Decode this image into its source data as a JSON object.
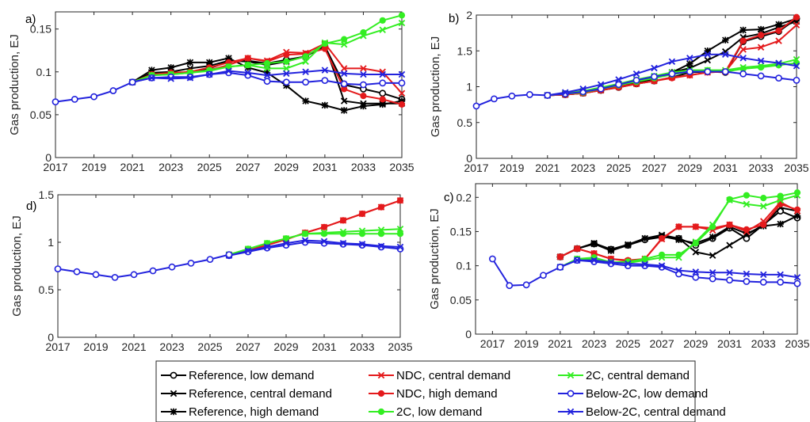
{
  "colors": {
    "reference": "#000000",
    "ndc": "#e41a1c",
    "two_c": "#33ee22",
    "below_2c": "#2222dd"
  },
  "legend": [
    {
      "label": "Reference, low demand",
      "scenario": "reference",
      "marker": "circle-open"
    },
    {
      "label": "Reference, central demand",
      "scenario": "reference",
      "marker": "x"
    },
    {
      "label": "Reference, high demand",
      "scenario": "reference",
      "marker": "star"
    },
    {
      "label": "NDC, central demand",
      "scenario": "ndc",
      "marker": "x"
    },
    {
      "label": "NDC, high demand",
      "scenario": "ndc",
      "marker": "circle-filled"
    },
    {
      "label": "2C, low demand",
      "scenario": "two_c",
      "marker": "circle-filled"
    },
    {
      "label": "2C, central demand",
      "scenario": "two_c",
      "marker": "x"
    },
    {
      "label": "Below-2C, low demand",
      "scenario": "below_2c",
      "marker": "circle-open"
    },
    {
      "label": "Below-2C, central demand",
      "scenario": "below_2c",
      "marker": "x"
    }
  ],
  "chart_data": [
    {
      "panel": "a)",
      "type": "line",
      "ylabel": "Gas production, EJ",
      "xlim": [
        2017,
        2035
      ],
      "ylim": [
        0,
        0.17
      ],
      "xticks": [
        "2017",
        "2019",
        "2021",
        "2023",
        "2025",
        "2027",
        "2029",
        "2031",
        "2033",
        "2035"
      ],
      "yticks": [
        "0",
        "0.05",
        "0.1",
        "0.15"
      ],
      "base_x": [
        2017,
        2018,
        2019,
        2020,
        2021
      ],
      "base_y": [
        0.065,
        0.068,
        0.071,
        0.078,
        0.088
      ],
      "series_x": [
        2021,
        2022,
        2023,
        2024,
        2025,
        2026,
        2027,
        2028,
        2029,
        2030,
        2031,
        2032,
        2033,
        2034,
        2035
      ],
      "series": [
        {
          "legend": 0,
          "values": [
            0.088,
            0.097,
            0.098,
            0.1,
            0.104,
            0.112,
            0.113,
            0.11,
            0.114,
            0.118,
            0.13,
            0.085,
            0.08,
            0.075,
            0.068
          ]
        },
        {
          "legend": 1,
          "values": [
            0.088,
            0.099,
            0.1,
            0.104,
            0.107,
            0.113,
            0.112,
            0.108,
            0.112,
            0.118,
            0.132,
            0.066,
            0.063,
            0.063,
            0.063
          ]
        },
        {
          "legend": 2,
          "values": [
            0.088,
            0.102,
            0.105,
            0.111,
            0.111,
            0.116,
            0.105,
            0.099,
            0.084,
            0.066,
            0.061,
            0.055,
            0.06,
            0.062,
            0.066
          ]
        },
        {
          "legend": 3,
          "values": [
            0.088,
            0.097,
            0.098,
            0.099,
            0.102,
            0.108,
            0.116,
            0.113,
            0.123,
            0.122,
            0.133,
            0.104,
            0.104,
            0.1,
            0.075
          ]
        },
        {
          "legend": 4,
          "values": [
            0.088,
            0.097,
            0.099,
            0.1,
            0.105,
            0.111,
            0.116,
            0.112,
            0.12,
            0.121,
            0.127,
            0.08,
            0.072,
            0.068,
            0.062
          ]
        },
        {
          "legend": 5,
          "values": [
            0.088,
            0.096,
            0.097,
            0.099,
            0.102,
            0.106,
            0.108,
            0.11,
            0.112,
            0.118,
            0.133,
            0.138,
            0.146,
            0.16,
            0.166
          ]
        },
        {
          "legend": 6,
          "values": [
            0.088,
            0.096,
            0.097,
            0.099,
            0.101,
            0.106,
            0.108,
            0.104,
            0.104,
            0.112,
            0.134,
            0.132,
            0.142,
            0.149,
            0.157
          ]
        },
        {
          "legend": 7,
          "values": [
            0.088,
            0.093,
            0.094,
            0.094,
            0.097,
            0.099,
            0.096,
            0.089,
            0.088,
            0.088,
            0.09,
            0.086,
            0.085,
            0.087,
            0.087
          ]
        },
        {
          "legend": 8,
          "values": [
            0.088,
            0.093,
            0.092,
            0.093,
            0.097,
            0.101,
            0.099,
            0.096,
            0.098,
            0.1,
            0.102,
            0.098,
            0.097,
            0.097,
            0.097
          ]
        }
      ]
    },
    {
      "panel": "b)",
      "type": "line",
      "ylabel": "Gas production, EJ",
      "xlim": [
        2017,
        2035
      ],
      "ylim": [
        0,
        2
      ],
      "xticks": [
        "2017",
        "2019",
        "2021",
        "2023",
        "2025",
        "2027",
        "2029",
        "2031",
        "2033",
        "2035"
      ],
      "yticks": [
        "0",
        "0.5",
        "1",
        "1.5",
        "2"
      ],
      "base_x": [
        2017,
        2018,
        2019,
        2020,
        2021
      ],
      "base_y": [
        0.73,
        0.83,
        0.87,
        0.89,
        0.88
      ],
      "series_x": [
        2021,
        2022,
        2023,
        2024,
        2025,
        2026,
        2027,
        2028,
        2029,
        2030,
        2031,
        2032,
        2033,
        2034,
        2035
      ],
      "series": [
        {
          "legend": 0,
          "values": [
            0.88,
            0.89,
            0.91,
            0.95,
            0.99,
            1.04,
            1.08,
            1.13,
            1.2,
            1.21,
            1.2,
            1.63,
            1.7,
            1.77,
            1.95
          ]
        },
        {
          "legend": 1,
          "values": [
            0.88,
            0.89,
            0.91,
            0.96,
            1.02,
            1.07,
            1.13,
            1.2,
            1.26,
            1.37,
            1.49,
            1.69,
            1.74,
            1.83,
            1.91
          ]
        },
        {
          "legend": 2,
          "values": [
            0.88,
            0.9,
            0.92,
            0.95,
            1.0,
            1.05,
            1.11,
            1.2,
            1.32,
            1.5,
            1.65,
            1.79,
            1.8,
            1.87,
            1.95
          ]
        },
        {
          "legend": 3,
          "values": [
            0.88,
            0.89,
            0.91,
            0.95,
            1.0,
            1.04,
            1.08,
            1.13,
            1.16,
            1.2,
            1.21,
            1.52,
            1.55,
            1.64,
            1.86
          ]
        },
        {
          "legend": 4,
          "values": [
            0.88,
            0.89,
            0.91,
            0.95,
            0.99,
            1.04,
            1.08,
            1.12,
            1.16,
            1.2,
            1.21,
            1.64,
            1.72,
            1.78,
            1.97
          ]
        },
        {
          "legend": 5,
          "values": [
            0.88,
            0.9,
            0.92,
            0.97,
            1.02,
            1.07,
            1.12,
            1.17,
            1.21,
            1.23,
            1.21,
            1.25,
            1.27,
            1.3,
            1.33
          ]
        },
        {
          "legend": 6,
          "values": [
            0.88,
            0.91,
            0.94,
            0.99,
            1.04,
            1.1,
            1.15,
            1.2,
            1.23,
            1.23,
            1.23,
            1.27,
            1.29,
            1.32,
            1.38
          ]
        },
        {
          "legend": 7,
          "values": [
            0.88,
            0.9,
            0.93,
            0.97,
            1.03,
            1.09,
            1.14,
            1.18,
            1.21,
            1.21,
            1.21,
            1.18,
            1.15,
            1.12,
            1.09
          ]
        },
        {
          "legend": 8,
          "values": [
            0.88,
            0.92,
            0.97,
            1.03,
            1.1,
            1.18,
            1.26,
            1.35,
            1.4,
            1.45,
            1.45,
            1.4,
            1.36,
            1.33,
            1.29
          ]
        }
      ]
    },
    {
      "panel": "d)",
      "type": "line",
      "ylabel": "Gas production, EJ",
      "xlim": [
        2017,
        2035
      ],
      "ylim": [
        0,
        1.5
      ],
      "xticks": [
        "2017",
        "2019",
        "2021",
        "2023",
        "2025",
        "2027",
        "2029",
        "2031",
        "2033",
        "2035"
      ],
      "yticks": [
        "0",
        "0.5",
        "1",
        "1.5"
      ],
      "base_x": [
        2017,
        2018,
        2019,
        2020,
        2021,
        2022,
        2023,
        2024,
        2025,
        2026
      ],
      "base_y": [
        0.72,
        0.69,
        0.66,
        0.63,
        0.66,
        0.7,
        0.74,
        0.78,
        0.82,
        0.87
      ],
      "series_x": [
        2026,
        2027,
        2028,
        2029,
        2030,
        2031,
        2032,
        2033,
        2034,
        2035
      ],
      "series": [
        {
          "legend": 3,
          "values": [
            0.87,
            0.92,
            0.97,
            1.03,
            1.1,
            1.16,
            1.23,
            1.3,
            1.37,
            1.44
          ]
        },
        {
          "legend": 4,
          "values": [
            0.87,
            0.92,
            0.97,
            1.03,
            1.1,
            1.16,
            1.23,
            1.3,
            1.37,
            1.44
          ]
        },
        {
          "legend": 5,
          "values": [
            0.87,
            0.93,
            0.99,
            1.04,
            1.09,
            1.09,
            1.09,
            1.09,
            1.09,
            1.09
          ]
        },
        {
          "legend": 6,
          "values": [
            0.87,
            0.93,
            0.99,
            1.04,
            1.09,
            1.1,
            1.11,
            1.12,
            1.13,
            1.14
          ]
        },
        {
          "legend": 7,
          "values": [
            0.86,
            0.9,
            0.94,
            0.97,
            1.0,
            0.99,
            0.98,
            0.97,
            0.95,
            0.93
          ]
        },
        {
          "legend": 8,
          "values": [
            0.86,
            0.91,
            0.95,
            0.99,
            1.02,
            1.01,
            0.99,
            0.98,
            0.96,
            0.95
          ]
        }
      ]
    },
    {
      "panel": "c)",
      "type": "line",
      "ylabel": "Gas production, EJ",
      "xlim": [
        2016,
        2035
      ],
      "ylim": [
        0,
        0.22
      ],
      "xticks": [
        "2017",
        "2019",
        "2021",
        "2023",
        "2025",
        "2027",
        "2029",
        "2031",
        "2033",
        "2035"
      ],
      "yticks": [
        "0",
        "0.05",
        "0.1",
        "0.15",
        "0.2"
      ],
      "base_x": [
        2017,
        2018,
        2019,
        2020,
        2021
      ],
      "base_y": [
        0.11,
        0.071,
        0.072,
        0.086,
        0.098
      ],
      "series_x": [
        2021,
        2022,
        2023,
        2024,
        2025,
        2026,
        2027,
        2028,
        2029,
        2030,
        2031,
        2032,
        2033,
        2034,
        2035
      ],
      "series": [
        {
          "legend": 0,
          "values": [
            0.113,
            0.125,
            0.132,
            0.124,
            0.13,
            0.138,
            0.142,
            0.14,
            0.13,
            0.14,
            0.155,
            0.14,
            0.16,
            0.18,
            0.17
          ]
        },
        {
          "legend": 1,
          "values": [
            0.113,
            0.125,
            0.133,
            0.124,
            0.131,
            0.14,
            0.145,
            0.14,
            0.12,
            0.115,
            0.13,
            0.145,
            0.16,
            0.185,
            0.18
          ]
        },
        {
          "legend": 2,
          "values": [
            0.113,
            0.125,
            0.132,
            0.122,
            0.13,
            0.14,
            0.143,
            0.138,
            0.133,
            0.142,
            0.157,
            0.147,
            0.158,
            0.161,
            0.173
          ]
        },
        {
          "legend": 3,
          "values": [
            0.113,
            0.125,
            0.118,
            0.11,
            0.107,
            0.11,
            0.139,
            0.157,
            0.157,
            0.152,
            0.16,
            0.15,
            0.165,
            0.193,
            0.18
          ]
        },
        {
          "legend": 4,
          "values": [
            0.113,
            0.125,
            0.118,
            0.11,
            0.108,
            0.11,
            0.14,
            0.157,
            0.157,
            0.155,
            0.16,
            0.153,
            0.16,
            0.19,
            0.182
          ]
        },
        {
          "legend": 5,
          "values": [
            0.098,
            0.11,
            0.112,
            0.105,
            0.106,
            0.11,
            0.116,
            0.116,
            0.133,
            0.157,
            0.197,
            0.203,
            0.199,
            0.202,
            0.207
          ]
        },
        {
          "legend": 6,
          "values": [
            0.098,
            0.11,
            0.11,
            0.105,
            0.104,
            0.108,
            0.112,
            0.112,
            0.135,
            0.16,
            0.196,
            0.19,
            0.187,
            0.196,
            0.203
          ]
        },
        {
          "legend": 7,
          "values": [
            0.098,
            0.108,
            0.106,
            0.103,
            0.1,
            0.1,
            0.098,
            0.088,
            0.083,
            0.081,
            0.079,
            0.077,
            0.076,
            0.076,
            0.074
          ]
        },
        {
          "legend": 8,
          "values": [
            0.098,
            0.108,
            0.108,
            0.105,
            0.103,
            0.102,
            0.1,
            0.093,
            0.091,
            0.09,
            0.09,
            0.088,
            0.087,
            0.087,
            0.083
          ]
        }
      ]
    }
  ]
}
